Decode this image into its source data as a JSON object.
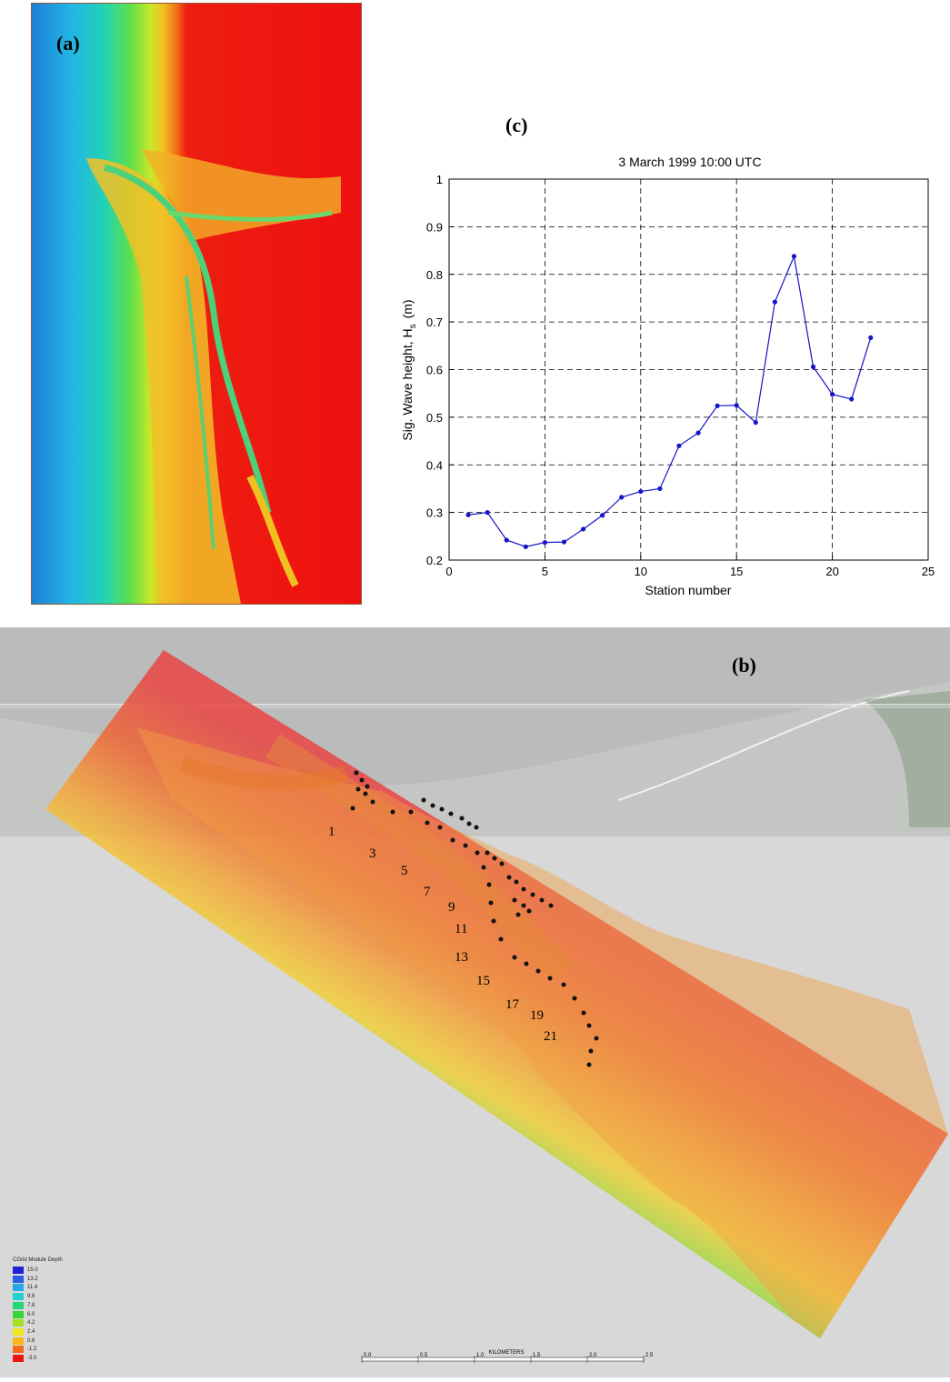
{
  "panels": {
    "a_label": "(a)",
    "b_label": "(b)",
    "c_label": "(c)"
  },
  "map_b": {
    "station_labels": [
      {
        "text": "1"
      },
      {
        "text": "3"
      },
      {
        "text": "5"
      },
      {
        "text": "7"
      },
      {
        "text": "9"
      },
      {
        "text": "11"
      },
      {
        "text": "13"
      },
      {
        "text": "15"
      },
      {
        "text": "17"
      },
      {
        "text": "19"
      },
      {
        "text": "21"
      }
    ],
    "legend": {
      "title": "CGrid Module Depth",
      "entries": [
        {
          "label": "15.0",
          "color": "#1f1fd6"
        },
        {
          "label": "13.2",
          "color": "#2a5ce8"
        },
        {
          "label": "11.4",
          "color": "#27a6e8"
        },
        {
          "label": "9.6",
          "color": "#23d1d1"
        },
        {
          "label": "7.8",
          "color": "#22d67a"
        },
        {
          "label": "6.0",
          "color": "#33d633"
        },
        {
          "label": "4.2",
          "color": "#a6e020"
        },
        {
          "label": "2.4",
          "color": "#f0e81a"
        },
        {
          "label": "0.6",
          "color": "#f5b814"
        },
        {
          "label": "-1.2",
          "color": "#f56a14"
        },
        {
          "label": "-3.0",
          "color": "#f01414"
        }
      ]
    },
    "scale_bar": {
      "title": "KILOMETERS",
      "ticks": [
        "0.0",
        "0.5",
        "1.0",
        "1.5",
        "2.0",
        "2.5"
      ]
    }
  },
  "chart_data": {
    "type": "line",
    "title": "3 March 1999 10:00 UTC",
    "xlabel": "Station number",
    "ylabel": "Sig. Wave height, H",
    "ylabel_subscript": "s",
    "ylabel_unit": "(m)",
    "xlim": [
      0,
      25
    ],
    "ylim": [
      0.2,
      1
    ],
    "xticks": [
      0,
      5,
      10,
      15,
      20,
      25
    ],
    "yticks": [
      0.2,
      0.3,
      0.4,
      0.5,
      0.6,
      0.7,
      0.8,
      0.9,
      1
    ],
    "grid": true,
    "series": [
      {
        "color": "#1515c8",
        "x": [
          1,
          2,
          3,
          4,
          5,
          6,
          7,
          8,
          9,
          10,
          11,
          12,
          13,
          14,
          15,
          16,
          17,
          18,
          19,
          20,
          21,
          22
        ],
        "y": [
          0.295,
          0.3,
          0.242,
          0.228,
          0.237,
          0.238,
          0.265,
          0.294,
          0.332,
          0.344,
          0.35,
          0.44,
          0.467,
          0.524,
          0.525,
          0.489,
          0.742,
          0.838,
          0.606,
          0.548,
          0.538,
          0.667
        ]
      }
    ]
  }
}
